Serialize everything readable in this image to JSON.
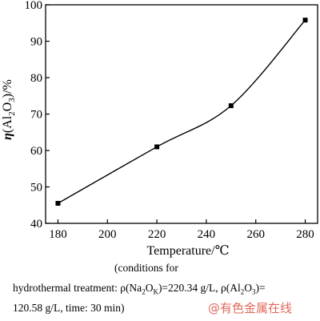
{
  "chart_data": {
    "type": "line",
    "x": [
      180,
      220,
      250,
      280
    ],
    "series": [
      {
        "name": "",
        "values": [
          45.5,
          61,
          72.3,
          95.8
        ]
      }
    ],
    "xlabel": "Temperature/℃",
    "ylabel": "η(Al₂O₃)/%",
    "ylabel_parts": {
      "eta": "η",
      "open": "(Al",
      "s1": "2",
      "mid": "O",
      "s2": "3",
      "close": ")/%"
    },
    "xlim": [
      175,
      285
    ],
    "ylim": [
      40,
      100
    ],
    "xticks": [
      180,
      200,
      220,
      240,
      260,
      280
    ],
    "yticks": [
      40,
      50,
      60,
      70,
      80,
      90,
      100
    ],
    "grid": false,
    "marker": "square",
    "line_color": "#000000"
  },
  "caption": {
    "line1": "(conditions   for",
    "line2_a": "hydrothermal   treatment:   ρ(Na",
    "line2_s1": "2",
    "line2_b": "O",
    "line2_s2": "K",
    "line2_c": ")=220.34   g/L,   ρ(Al",
    "line2_s3": "2",
    "line2_d": "O",
    "line2_s4": "3",
    "line2_e": ")=",
    "line3": "120.58 g/L, time: 30 min)"
  },
  "watermark": "@有色金属在线"
}
